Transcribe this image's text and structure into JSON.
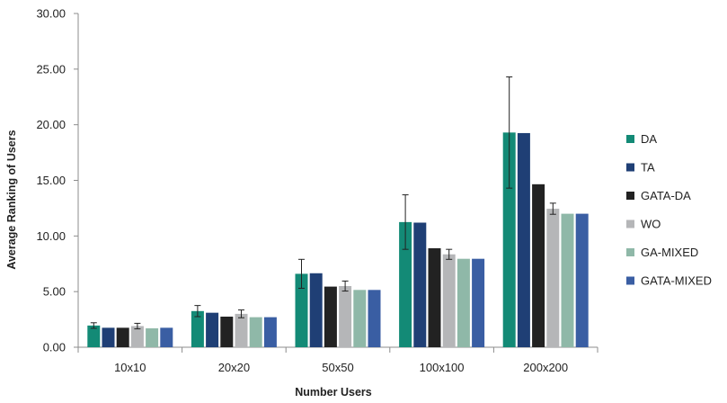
{
  "chart_data": {
    "type": "bar",
    "title": "",
    "xlabel": "Number Users",
    "ylabel": "Average Ranking of Users",
    "ylim": [
      0,
      30
    ],
    "yticks": [
      "0.00",
      "5.00",
      "10.00",
      "15.00",
      "20.00",
      "25.00",
      "30.00"
    ],
    "categories": [
      "10x10",
      "20x20",
      "50x50",
      "100x100",
      "200x200"
    ],
    "grid": false,
    "legend_position": "right",
    "series": [
      {
        "name": "DA",
        "color": "#138a76",
        "values": [
          1.95,
          3.25,
          6.6,
          11.25,
          19.3
        ],
        "error": [
          0.25,
          0.5,
          1.3,
          2.45,
          5.0
        ]
      },
      {
        "name": "TA",
        "color": "#1f3f75",
        "values": [
          1.75,
          3.1,
          6.65,
          11.2,
          19.25
        ],
        "error": null
      },
      {
        "name": "GATA-DA",
        "color": "#222222",
        "values": [
          1.75,
          2.75,
          5.45,
          8.9,
          14.65
        ],
        "error": null
      },
      {
        "name": "WO",
        "color": "#b5b6b8",
        "values": [
          1.9,
          3.0,
          5.5,
          8.35,
          12.45
        ],
        "error": [
          0.25,
          0.35,
          0.45,
          0.45,
          0.5
        ]
      },
      {
        "name": "GA-MIXED",
        "color": "#8fb8a8",
        "values": [
          1.7,
          2.7,
          5.15,
          7.95,
          12.0
        ],
        "error": null
      },
      {
        "name": "GATA-MIXED",
        "color": "#3a5ea3",
        "values": [
          1.75,
          2.7,
          5.15,
          7.95,
          12.0
        ],
        "error": null
      }
    ]
  }
}
